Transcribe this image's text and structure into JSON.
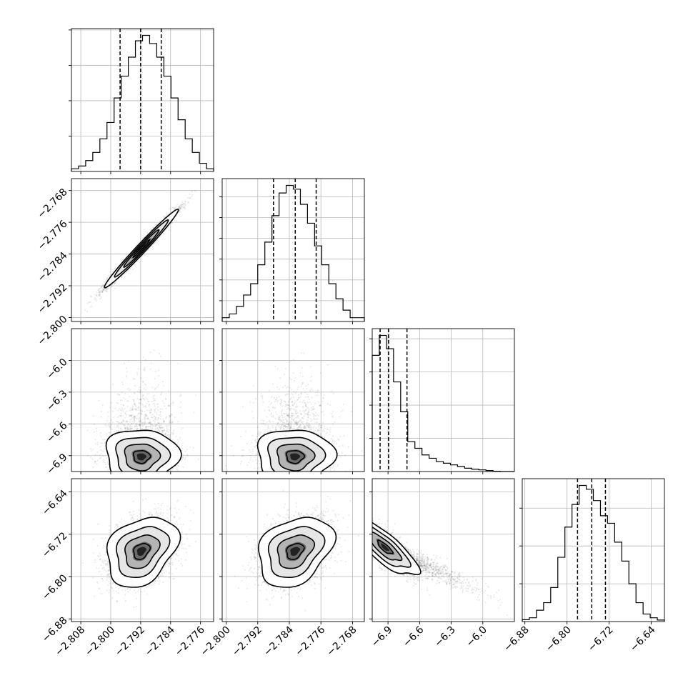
{
  "chart_data": {
    "type": "corner",
    "parameters": [
      {
        "ticks": [
          "−2.808",
          "−2.800",
          "−2.792",
          "−2.784",
          "−2.776"
        ],
        "tick_values": [
          -2.808,
          -2.8,
          -2.792,
          -2.784,
          -2.776
        ],
        "range": [
          -2.8105,
          -2.7725
        ],
        "quantiles": [
          -2.7975,
          -2.792,
          -2.7865
        ],
        "hist": [
          1,
          2,
          4,
          7,
          12,
          18,
          27,
          35,
          42,
          48,
          50,
          47,
          42,
          35,
          27,
          19,
          12,
          7,
          3,
          1
        ]
      },
      {
        "ticks": [
          "−2.800",
          "−2.792",
          "−2.784",
          "−2.776",
          "−2.768"
        ],
        "tick_values": [
          -2.8,
          -2.792,
          -2.784,
          -2.776,
          -2.768
        ],
        "range": [
          -2.801,
          -2.765
        ],
        "quantiles": [
          -2.788,
          -2.7825,
          -2.7772
        ],
        "hist": [
          1,
          2,
          4,
          7,
          10,
          15,
          21,
          28,
          34,
          36,
          35,
          31,
          26,
          20,
          15,
          10,
          6,
          3,
          1,
          1
        ]
      },
      {
        "ticks": [
          "−6.9",
          "−6.6",
          "−6.3",
          "−6.0"
        ],
        "tick_values": [
          -6.9,
          -6.6,
          -6.3,
          -6.0
        ],
        "range": [
          -7.05,
          -5.7
        ],
        "quantiles": [
          -6.975,
          -6.895,
          -6.72
        ],
        "hist": [
          35,
          41,
          37,
          27,
          18,
          9,
          7,
          5,
          4,
          3,
          2.5,
          2,
          1.5,
          1,
          0.7,
          0.5,
          0.3,
          0.1,
          0,
          0
        ]
      },
      {
        "ticks": [
          "−6.88",
          "−6.80",
          "−6.72",
          "−6.64"
        ],
        "tick_values": [
          -6.88,
          -6.8,
          -6.72,
          -6.64
        ],
        "range": [
          -6.885,
          -6.615
        ],
        "quantiles": [
          -6.78,
          -6.753,
          -6.727
        ],
        "hist": [
          0.5,
          1,
          3,
          5,
          9,
          17,
          25,
          31,
          36,
          35,
          32,
          28,
          26,
          21,
          16,
          10,
          5,
          2,
          1,
          0.4
        ]
      }
    ],
    "hist_ticks": {
      "0": [
        13,
        26,
        39,
        52
      ],
      "1": [
        5.5,
        11,
        16.5,
        22,
        27.5,
        33
      ],
      "2": [
        10,
        20,
        30,
        40
      ],
      "3": [
        10,
        20,
        30
      ]
    },
    "grid": true,
    "pairs": [
      {
        "row": 1,
        "col": 0,
        "center": [
          -2.7918,
          -2.7826
        ],
        "std": [
          0.0045,
          0.0045
        ],
        "corr": 0.985,
        "samples": 3500
      },
      {
        "row": 2,
        "col": 0,
        "center": [
          -2.7918,
          -6.91
        ],
        "std": [
          0.0044,
          0.12
        ],
        "corr": 0.0,
        "samples": 3200
      },
      {
        "row": 2,
        "col": 1,
        "center": [
          -2.7826,
          -6.91
        ],
        "std": [
          0.0044,
          0.12
        ],
        "corr": 0.0,
        "samples": 3200
      },
      {
        "row": 3,
        "col": 0,
        "center": [
          -2.7918,
          -6.752
        ],
        "std": [
          0.0043,
          0.03
        ],
        "corr": 0.3,
        "samples": 3500
      },
      {
        "row": 3,
        "col": 1,
        "center": [
          -2.7826,
          -6.752
        ],
        "std": [
          0.0043,
          0.03
        ],
        "corr": 0.3,
        "samples": 3500
      },
      {
        "row": 3,
        "col": 2,
        "center": [
          -6.93,
          -6.745
        ],
        "std": [
          0.14,
          0.025
        ],
        "corr": -0.8,
        "samples": 3200
      }
    ]
  }
}
